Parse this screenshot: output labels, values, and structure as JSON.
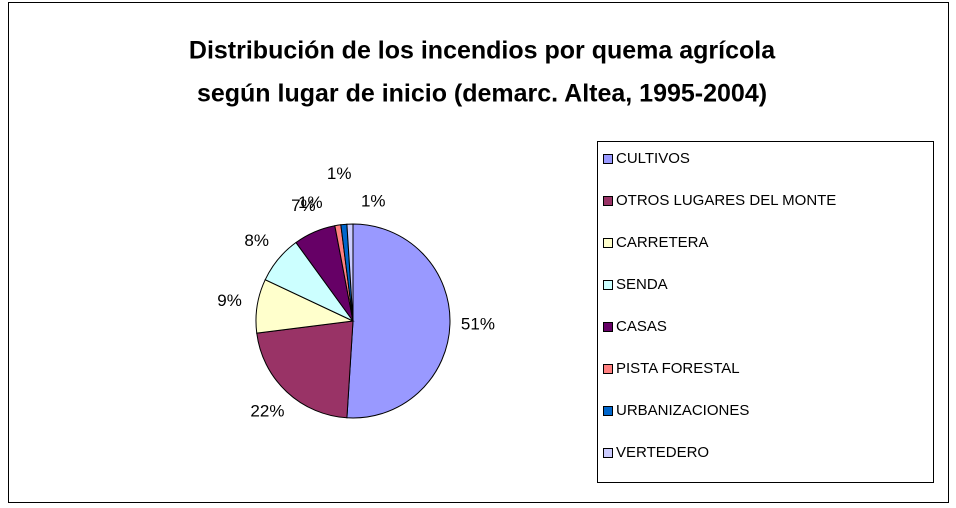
{
  "chart_data": {
    "type": "pie",
    "title": [
      "Distribución de los incendios por quema agrícola",
      "según lugar de inicio (demarc. Altea, 1995-2004)"
    ],
    "categories": [
      "CULTIVOS",
      "OTROS LUGARES DEL MONTE",
      "CARRETERA",
      "SENDA",
      "CASAS",
      "PISTA FORESTAL",
      "URBANIZACIONES",
      "VERTEDERO"
    ],
    "values": [
      51,
      22,
      9,
      8,
      7,
      1,
      1,
      1
    ],
    "value_labels": [
      "51%",
      "22%",
      "9%",
      "8%",
      "7%",
      "1%",
      "1%",
      "1%"
    ],
    "colors": [
      "#9999ff",
      "#993366",
      "#ffffcc",
      "#ccffff",
      "#660066",
      "#ff8080",
      "#0066cc",
      "#ccccff"
    ],
    "legend": "right"
  }
}
